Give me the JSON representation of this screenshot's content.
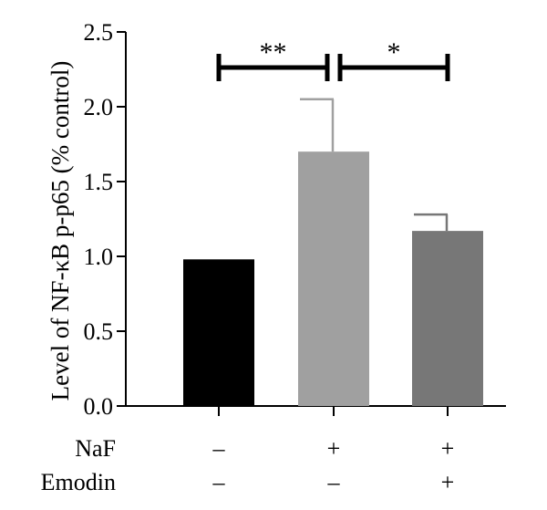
{
  "chart_data": {
    "type": "bar",
    "title": "",
    "xlabel": "",
    "ylabel": "Level of NF-κB p-p65 (% control)",
    "ylim": [
      0,
      2.5
    ],
    "yticks": [
      0.0,
      0.5,
      1.0,
      1.5,
      2.0,
      2.5
    ],
    "ytick_labels": [
      "0.0",
      "0.5",
      "1.0",
      "1.5",
      "2.0",
      "2.5"
    ],
    "grid": false,
    "bars": [
      {
        "value": 0.98,
        "error": 0.0,
        "color": "#000000"
      },
      {
        "value": 1.7,
        "error": 0.35,
        "color": "#a0a0a0"
      },
      {
        "value": 1.17,
        "error": 0.11,
        "color": "#777777"
      }
    ],
    "conditions": [
      {
        "label": "NaF",
        "values": [
          "–",
          "+",
          "+"
        ]
      },
      {
        "label": "Emodin",
        "values": [
          "–",
          "–",
          "+"
        ]
      }
    ],
    "significance": [
      {
        "from": 0,
        "to": 1,
        "label": "**"
      },
      {
        "from": 1,
        "to": 2,
        "label": "*"
      }
    ]
  }
}
